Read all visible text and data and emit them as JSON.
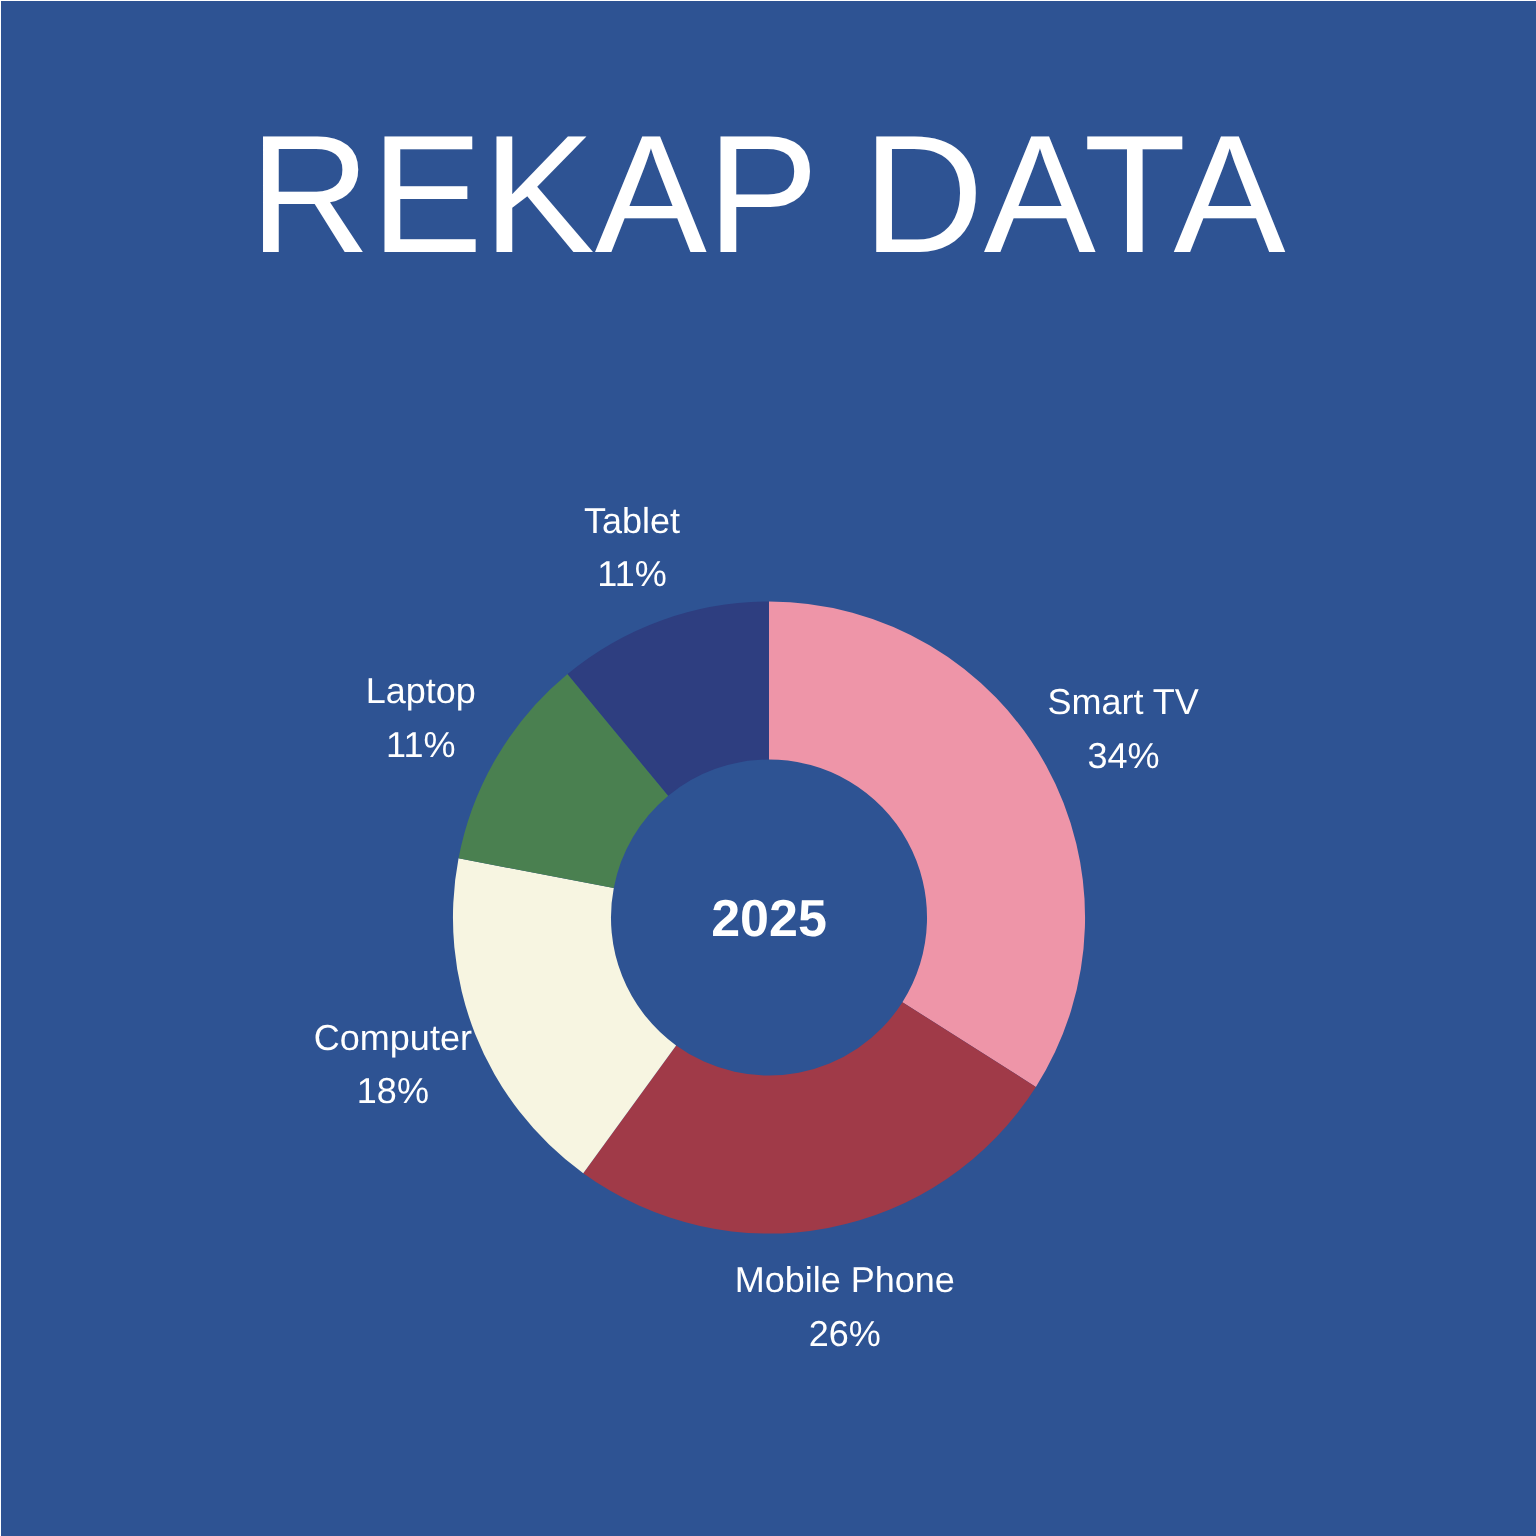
{
  "chart_data": {
    "type": "donut",
    "title": "REKAP DATA",
    "categories": [
      "Smart TV",
      "Mobile Phone",
      "Computer",
      "Laptop",
      "Tablet"
    ],
    "values": [
      34,
      26,
      18,
      11,
      11
    ],
    "colors": [
      "#ee95a8",
      "#a03a48",
      "#f7f5e1",
      "#4a8050",
      "#2e3e80"
    ],
    "value_labels": [
      "34%",
      "26%",
      "18%",
      "11%",
      "11%"
    ],
    "annotations": [
      "2025"
    ]
  }
}
